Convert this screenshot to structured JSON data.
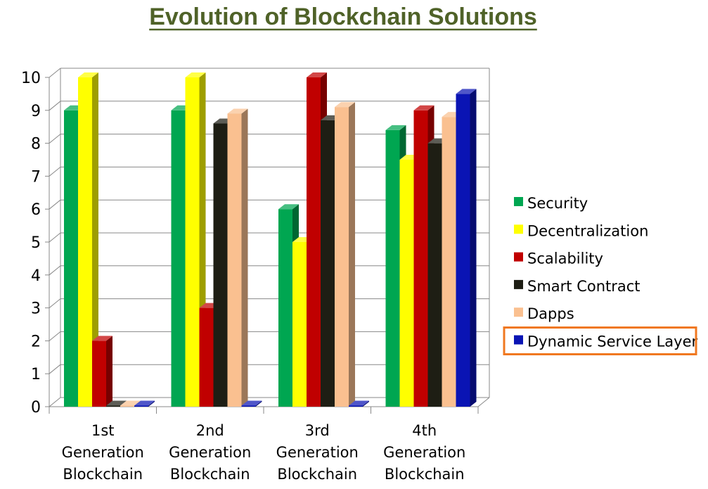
{
  "chart_data": {
    "type": "bar",
    "title": "Evolution of Blockchain Solutions",
    "xlabel": "",
    "ylabel": "",
    "ylim": [
      0,
      10
    ],
    "yticks": [
      0,
      1,
      2,
      3,
      4,
      5,
      6,
      7,
      8,
      9,
      10
    ],
    "grid": true,
    "legend_position": "right",
    "highlighted_legend_entry": "Dynamic Service Layer",
    "categories": [
      [
        "1st",
        "Generation",
        "Blockchain"
      ],
      [
        "2nd",
        "Generation",
        "Blockchain"
      ],
      [
        "3rd",
        "Generation",
        "Blockchain"
      ],
      [
        "4th",
        "Generation",
        "Blockchain"
      ]
    ],
    "series": [
      {
        "name": "Security",
        "color": "#00a651",
        "values": [
          9,
          9,
          6,
          8.4
        ]
      },
      {
        "name": "Decentralization",
        "color": "#ffff00",
        "values": [
          10,
          10,
          5,
          7.5
        ]
      },
      {
        "name": "Scalability",
        "color": "#c00000",
        "values": [
          2,
          3,
          10,
          9
        ]
      },
      {
        "name": "Smart Contract",
        "color": "#1e1e14",
        "values": [
          0,
          8.6,
          8.7,
          8
        ]
      },
      {
        "name": "Dapps",
        "color": "#fac090",
        "values": [
          0,
          8.9,
          9.1,
          8.8
        ]
      },
      {
        "name": "Dynamic Service Layer",
        "color": "#0a14b4",
        "values": [
          0,
          0,
          0,
          9.5
        ]
      }
    ],
    "colors": {
      "title": "#4f6228",
      "highlight_box": "#f07820",
      "grid": "#888888"
    }
  }
}
